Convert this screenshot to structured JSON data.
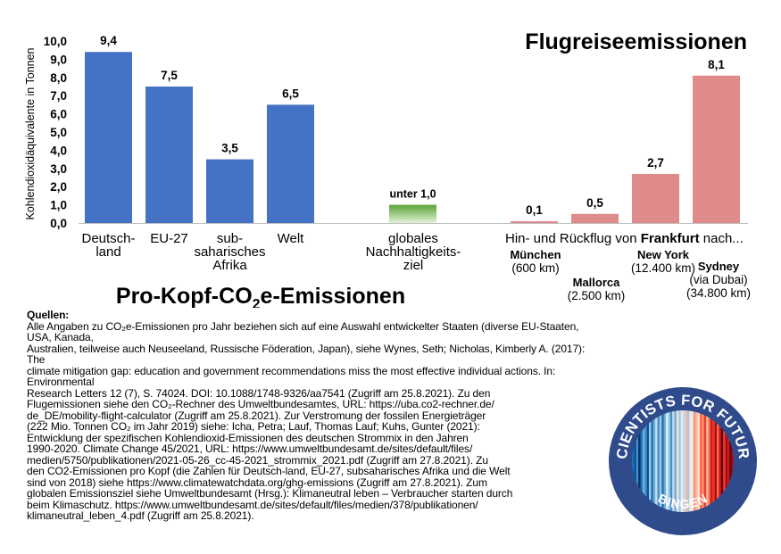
{
  "chart_data": {
    "type": "bar",
    "title": "Flugreiseemissionen",
    "subtitle": "Pro-Kopf-CO₂e-Emissionen",
    "ylabel": "Kohlendioxidäquivalente in Tonnen",
    "ylim": [
      0,
      10
    ],
    "yticks": [
      "0,0",
      "1,0",
      "2,0",
      "3,0",
      "4,0",
      "5,0",
      "6,0",
      "7,0",
      "8,0",
      "9,0",
      "10,0"
    ],
    "grid": false,
    "groups": [
      {
        "name": "per_capita",
        "color": "#4472c4",
        "bars": [
          {
            "category": "Deutsch-\nland",
            "value": 9.4,
            "label": "9,4"
          },
          {
            "category": "EU-27",
            "value": 7.5,
            "label": "7,5"
          },
          {
            "category": "sub-\nsaharisches\nAfrika",
            "value": 3.5,
            "label": "3,5"
          },
          {
            "category": "Welt",
            "value": 6.5,
            "label": "6,5"
          }
        ]
      },
      {
        "name": "target",
        "color": "#6aae45",
        "bars": [
          {
            "category": "globales\nNachhaltigkeits-\nziel",
            "value": 1.0,
            "label": "unter 1,0"
          }
        ]
      },
      {
        "name": "flights",
        "color": "#e08b8b",
        "group_label_prefix": "Hin- und Rückflug von ",
        "group_label_bold": "Frankfurt",
        "group_label_suffix": " nach...",
        "bars": [
          {
            "category": "München",
            "distance": "(600 km)",
            "value": 0.1,
            "label": "0,1"
          },
          {
            "category": "Mallorca",
            "distance": "(2.500 km)",
            "value": 0.5,
            "label": "0,5"
          },
          {
            "category": "New York",
            "distance": "(12.400 km)",
            "value": 2.7,
            "label": "2,7"
          },
          {
            "category": "Sydney",
            "distance": "(via Dubai)\n(34.800 km)",
            "value": 8.1,
            "label": "8,1"
          }
        ]
      }
    ]
  },
  "sources": {
    "heading": "Quellen:",
    "text": "Alle Angaben zu CO₂e-Emissionen pro Jahr beziehen sich auf eine Auswahl entwickelter Staaten (diverse EU-Staaten, USA, Kanada,\nAustralien, teilweise auch Neuseeland, Russische Föderation, Japan), siehe Wynes, Seth; Nicholas, Kimberly A. (2017): The\nclimate mitigation gap: education and government recommendations miss the most effective individual actions. In: Environmental\nResearch Letters 12 (7), S. 74024. DOI: 10.1088/1748-9326/aa7541 (Zugriff am 25.8.2021). Zu den\nFlugemissionen siehe den CO₂-Rechner des Umweltbundesamtes, URL: https://uba.co2-rechner.de/\nde_DE/mobility-flight-calculator (Zugriff am 25.8.2021). Zur Verstromung der fossilen Energieträger\n(222 Mio. Tonnen CO₂ im Jahr 2019) siehe: Icha, Petra; Lauf, Thomas Lauf; Kuhs, Gunter (2021):\nEntwicklung der spezifischen Kohlendioxid-Emissionen des deutschen Strommix in den Jahren\n1990-2020. Climate Change 45/2021, URL: https://www.umweltbundesamt.de/sites/default/files/\nmedien/5750/publikationen/2021-05-26_cc-45-2021_strommix_2021.pdf (Zugriff am 27.8.2021). Zu\nden CO2-Emissionen pro Kopf (die Zahlen für Deutsch-land, EU-27, subsaharisches Afrika und die Welt\nsind von 2018) siehe https://www.climatewatchdata.org/ghg-emissions (Zugriff am 27.8.2021). Zum\nglobalen Emissionsziel siehe Umweltbundesamt (Hrsg.): Klimaneutral leben – Verbraucher starten durch\nbeim Klimaschutz. https://www.umweltbundesamt.de/sites/default/files/medien/378/publikationen/\nklimaneutral_leben_4.pdf (Zugriff am 25.8.2021)."
  },
  "logo": {
    "top_text": "SCIENTISTS FOR FUTURE",
    "bottom_text": "BINGEN",
    "ring_color": "#2f4b8c"
  }
}
